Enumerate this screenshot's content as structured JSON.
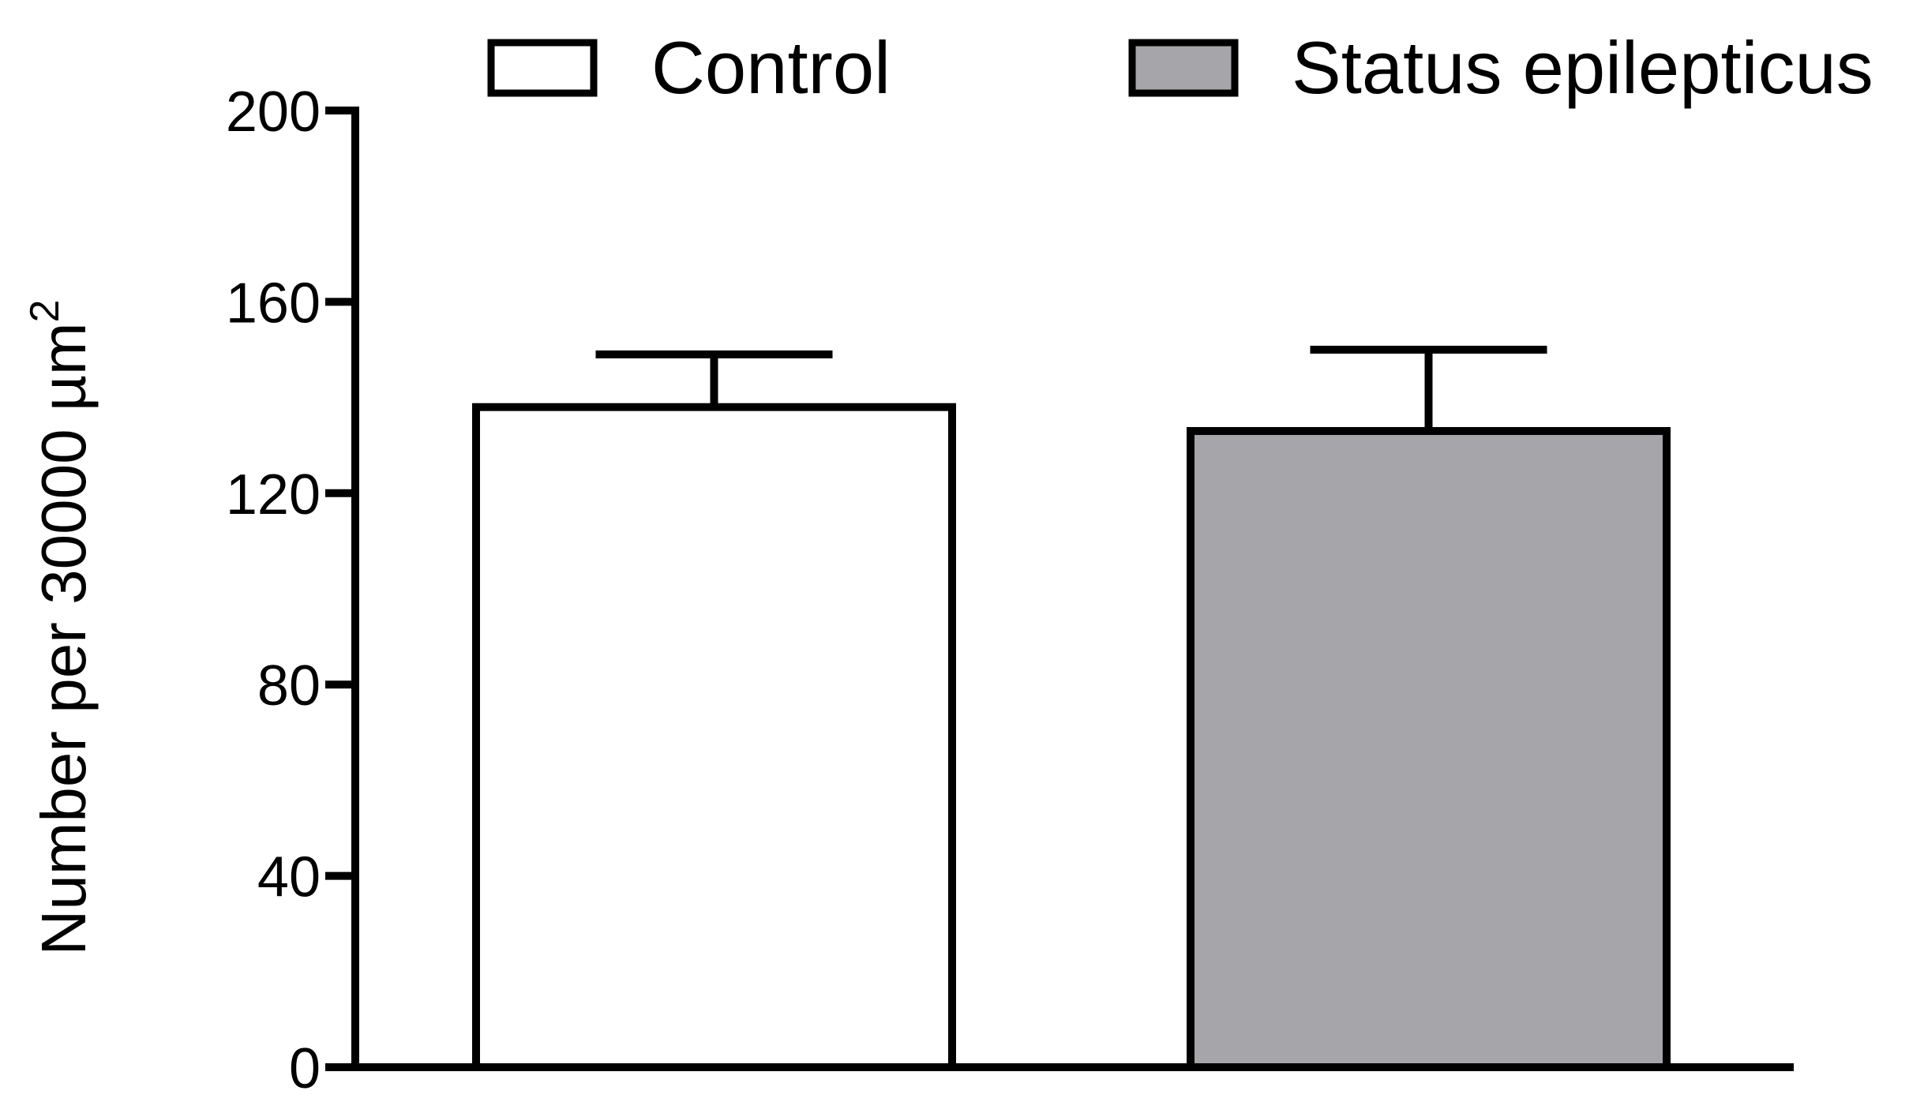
{
  "chart_data": {
    "type": "bar",
    "categories": [
      "Control",
      "Status epilepticus"
    ],
    "series": [
      {
        "name": "Control",
        "value": 138,
        "error": 11,
        "color": "#ffffff"
      },
      {
        "name": "Status epilepticus",
        "value": 133,
        "error": 17,
        "color": "#a6a5aa"
      }
    ],
    "ylabel": {
      "main": "Number per 30000 µm",
      "superscript": "2"
    },
    "ylim": [
      0,
      200
    ],
    "yticks": [
      "0",
      "40",
      "80",
      "120",
      "160",
      "200"
    ],
    "grid": false,
    "legend_position": "top"
  }
}
